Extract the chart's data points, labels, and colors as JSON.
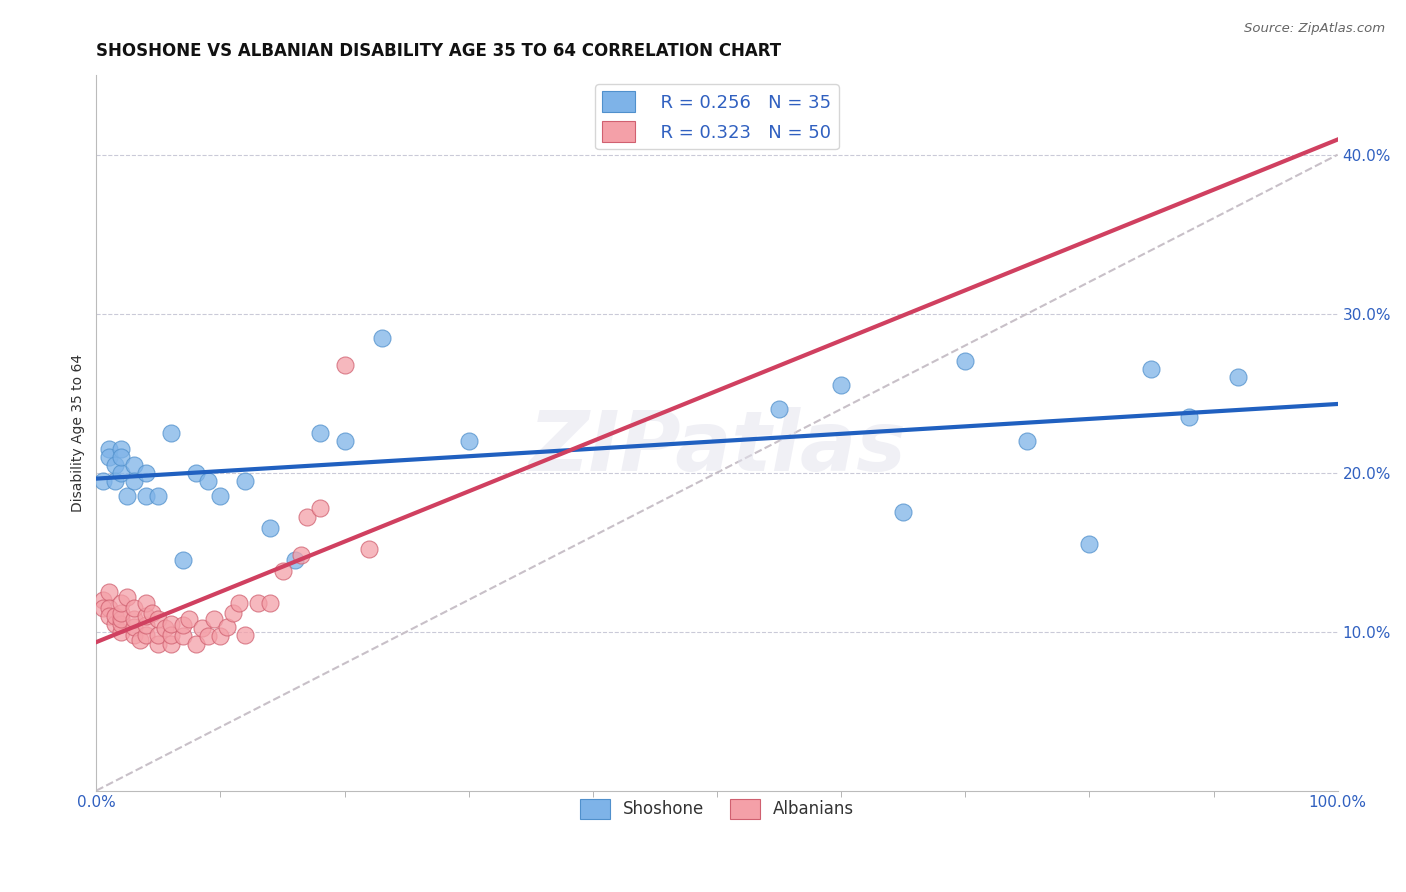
{
  "title": "SHOSHONE VS ALBANIAN DISABILITY AGE 35 TO 64 CORRELATION CHART",
  "source": "Source: ZipAtlas.com",
  "ylabel_left": "Disability Age 35 to 64",
  "xlim": [
    0.0,
    1.0
  ],
  "ylim": [
    0.0,
    0.45
  ],
  "xtick_positions": [
    0.0,
    1.0
  ],
  "xtick_labels": [
    "0.0%",
    "100.0%"
  ],
  "ytick_positions": [
    0.1,
    0.2,
    0.3,
    0.4
  ],
  "ytick_labels": [
    "10.0%",
    "20.0%",
    "30.0%",
    "40.0%"
  ],
  "shoshone_color": "#7EB3E8",
  "shoshone_edge_color": "#5090CC",
  "albanian_color": "#F4A0A8",
  "albanian_edge_color": "#D06070",
  "shoshone_line_color": "#2060C0",
  "albanian_line_color": "#D04060",
  "ref_line_color": "#C8C0C8",
  "watermark": "ZIPatlas",
  "background_color": "#FFFFFF",
  "grid_color": "#CACAD8",
  "title_fontsize": 12,
  "axis_label_fontsize": 10,
  "tick_fontsize": 11,
  "legend_fontsize": 13,
  "shoshone_x": [
    0.005,
    0.01,
    0.01,
    0.015,
    0.015,
    0.02,
    0.02,
    0.02,
    0.025,
    0.03,
    0.03,
    0.04,
    0.04,
    0.05,
    0.06,
    0.07,
    0.08,
    0.09,
    0.1,
    0.12,
    0.14,
    0.16,
    0.18,
    0.2,
    0.23,
    0.3,
    0.55,
    0.6,
    0.65,
    0.7,
    0.75,
    0.8,
    0.85,
    0.88,
    0.92
  ],
  "shoshone_y": [
    0.195,
    0.215,
    0.21,
    0.205,
    0.195,
    0.2,
    0.215,
    0.21,
    0.185,
    0.205,
    0.195,
    0.2,
    0.185,
    0.185,
    0.225,
    0.145,
    0.2,
    0.195,
    0.185,
    0.195,
    0.165,
    0.145,
    0.225,
    0.22,
    0.285,
    0.22,
    0.24,
    0.255,
    0.175,
    0.27,
    0.22,
    0.155,
    0.265,
    0.235,
    0.26
  ],
  "albanian_x": [
    0.005,
    0.005,
    0.01,
    0.01,
    0.01,
    0.015,
    0.015,
    0.02,
    0.02,
    0.02,
    0.02,
    0.02,
    0.025,
    0.03,
    0.03,
    0.03,
    0.03,
    0.035,
    0.04,
    0.04,
    0.04,
    0.04,
    0.045,
    0.05,
    0.05,
    0.05,
    0.055,
    0.06,
    0.06,
    0.06,
    0.07,
    0.07,
    0.075,
    0.08,
    0.085,
    0.09,
    0.095,
    0.1,
    0.105,
    0.11,
    0.115,
    0.12,
    0.13,
    0.14,
    0.15,
    0.165,
    0.17,
    0.18,
    0.2,
    0.22
  ],
  "albanian_y": [
    0.12,
    0.115,
    0.125,
    0.115,
    0.11,
    0.105,
    0.11,
    0.1,
    0.105,
    0.108,
    0.112,
    0.118,
    0.122,
    0.098,
    0.103,
    0.108,
    0.115,
    0.095,
    0.098,
    0.104,
    0.11,
    0.118,
    0.112,
    0.092,
    0.098,
    0.108,
    0.102,
    0.092,
    0.098,
    0.105,
    0.097,
    0.104,
    0.108,
    0.092,
    0.102,
    0.097,
    0.108,
    0.097,
    0.103,
    0.112,
    0.118,
    0.098,
    0.118,
    0.118,
    0.138,
    0.148,
    0.172,
    0.178,
    0.268,
    0.152
  ]
}
